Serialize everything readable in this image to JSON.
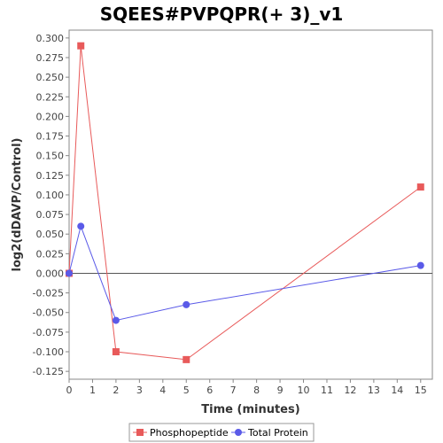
{
  "chart_data": {
    "type": "line",
    "title": "SQEES#PVPQPR(+ 3)_v1",
    "xlabel": "Time (minutes)",
    "ylabel": "log2(dDAVP/Control)",
    "xlim": [
      0,
      15.5
    ],
    "ylim": [
      -0.135,
      0.31
    ],
    "xticks": [
      0,
      1,
      2,
      3,
      4,
      5,
      6,
      7,
      8,
      9,
      10,
      11,
      12,
      13,
      14,
      15
    ],
    "yticks": [
      -0.125,
      -0.1,
      -0.075,
      -0.05,
      -0.025,
      0.0,
      0.025,
      0.05,
      0.075,
      0.1,
      0.125,
      0.15,
      0.175,
      0.2,
      0.225,
      0.25,
      0.275,
      0.3
    ],
    "ytick_labels": [
      "-0.125",
      "-0.100",
      "-0.075",
      "-0.050",
      "-0.025",
      "0.000",
      "0.025",
      "0.050",
      "0.075",
      "0.100",
      "0.125",
      "0.150",
      "0.175",
      "0.200",
      "0.225",
      "0.250",
      "0.275",
      "0.300"
    ],
    "zero_line": true,
    "grid": false,
    "legend_position": "bottom",
    "series": [
      {
        "name": "Phosphopeptide",
        "color": "#e85a5a",
        "marker": "square",
        "x": [
          0,
          0.5,
          2,
          5,
          15
        ],
        "y": [
          0.0,
          0.29,
          -0.1,
          -0.11,
          0.11
        ]
      },
      {
        "name": "Total Protein",
        "color": "#5a5ae8",
        "marker": "circle",
        "x": [
          0,
          0.5,
          2,
          5,
          15
        ],
        "y": [
          0.0,
          0.06,
          -0.06,
          -0.04,
          0.01
        ]
      }
    ]
  }
}
